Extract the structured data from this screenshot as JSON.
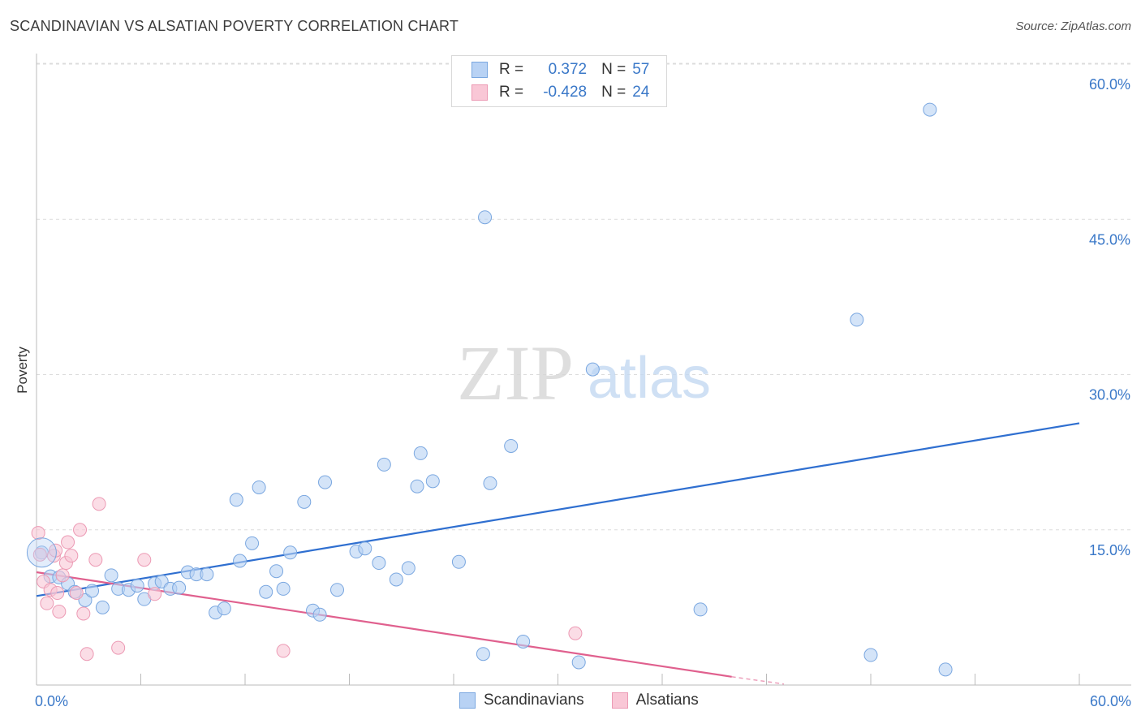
{
  "title": "SCANDINAVIAN VS ALSATIAN POVERTY CORRELATION CHART",
  "source": "Source: ZipAtlas.com",
  "watermark": {
    "zip": "ZIP",
    "atlas": "atlas"
  },
  "legend_top": [
    {
      "r_label": "R =",
      "r_value": "0.372",
      "n_label": "N =",
      "n_value": "57",
      "fill": "#b8d2f4",
      "stroke": "#7aa7e0"
    },
    {
      "r_label": "R =",
      "r_value": "-0.428",
      "n_label": "N =",
      "n_value": "24",
      "fill": "#f9c7d6",
      "stroke": "#ec9ab4"
    }
  ],
  "chart_data": {
    "type": "scatter",
    "title": "SCANDINAVIAN VS ALSATIAN POVERTY CORRELATION CHART",
    "xlabel": "",
    "ylabel": "Poverty",
    "xlim": [
      0,
      60
    ],
    "ylim": [
      0,
      60
    ],
    "x_tick_labels": [
      "0.0%",
      "60.0%"
    ],
    "y_ticks": [
      15,
      30,
      45,
      60
    ],
    "y_tick_labels": [
      "15.0%",
      "30.0%",
      "45.0%",
      "60.0%"
    ],
    "grid": true,
    "legend_position": "bottom-center",
    "series": [
      {
        "name": "Scandinavians",
        "color": "#7aa7e0",
        "fill": "#b8d2f4",
        "line_color": "#2f6fd0",
        "trend": {
          "x": [
            0,
            60
          ],
          "y": [
            8.6,
            25.3
          ]
        },
        "points": [
          [
            0.3,
            12.8
          ],
          [
            0.8,
            10.5
          ],
          [
            1.3,
            10.4
          ],
          [
            1.8,
            9.8
          ],
          [
            2.2,
            9.0
          ],
          [
            2.8,
            8.2
          ],
          [
            3.2,
            9.1
          ],
          [
            3.8,
            7.5
          ],
          [
            4.3,
            10.6
          ],
          [
            4.7,
            9.3
          ],
          [
            5.3,
            9.2
          ],
          [
            5.8,
            9.6
          ],
          [
            6.2,
            8.3
          ],
          [
            6.8,
            9.8
          ],
          [
            7.2,
            10.0
          ],
          [
            7.7,
            9.3
          ],
          [
            8.2,
            9.4
          ],
          [
            8.7,
            10.9
          ],
          [
            9.2,
            10.7
          ],
          [
            9.8,
            10.7
          ],
          [
            10.3,
            7.0
          ],
          [
            10.8,
            7.4
          ],
          [
            11.5,
            17.9
          ],
          [
            11.7,
            12.0
          ],
          [
            12.4,
            13.7
          ],
          [
            12.8,
            19.1
          ],
          [
            13.2,
            9.0
          ],
          [
            13.8,
            11.0
          ],
          [
            14.2,
            9.3
          ],
          [
            14.6,
            12.8
          ],
          [
            15.4,
            17.7
          ],
          [
            15.9,
            7.2
          ],
          [
            16.3,
            6.8
          ],
          [
            16.6,
            19.6
          ],
          [
            17.3,
            9.2
          ],
          [
            18.4,
            12.9
          ],
          [
            18.9,
            13.2
          ],
          [
            19.7,
            11.8
          ],
          [
            20.0,
            21.3
          ],
          [
            20.7,
            10.2
          ],
          [
            21.4,
            11.3
          ],
          [
            21.9,
            19.2
          ],
          [
            22.1,
            22.4
          ],
          [
            22.8,
            19.7
          ],
          [
            24.3,
            11.9
          ],
          [
            25.8,
            45.2
          ],
          [
            25.7,
            3.0
          ],
          [
            26.1,
            19.5
          ],
          [
            27.3,
            23.1
          ],
          [
            28.0,
            4.2
          ],
          [
            31.2,
            2.2
          ],
          [
            32.0,
            30.5
          ],
          [
            38.2,
            7.3
          ],
          [
            47.2,
            35.3
          ],
          [
            48.0,
            2.9
          ],
          [
            51.4,
            55.6
          ],
          [
            52.3,
            1.5
          ]
        ]
      },
      {
        "name": "Alsatians",
        "color": "#ec9ab4",
        "fill": "#f9c7d6",
        "line_color": "#e0608e",
        "trend": {
          "x": [
            0,
            40
          ],
          "y": [
            10.9,
            0.8
          ]
        },
        "trend_dashed": {
          "x": [
            40,
            43
          ],
          "y": [
            0.8,
            0.1
          ]
        },
        "points": [
          [
            0.1,
            14.7
          ],
          [
            0.2,
            12.6
          ],
          [
            0.4,
            10.0
          ],
          [
            0.6,
            7.9
          ],
          [
            0.8,
            9.2
          ],
          [
            1.0,
            12.5
          ],
          [
            1.1,
            13.0
          ],
          [
            1.2,
            8.9
          ],
          [
            1.3,
            7.1
          ],
          [
            1.5,
            10.6
          ],
          [
            1.7,
            11.8
          ],
          [
            1.8,
            13.8
          ],
          [
            2.0,
            12.5
          ],
          [
            2.3,
            8.9
          ],
          [
            2.5,
            15.0
          ],
          [
            2.7,
            6.9
          ],
          [
            2.9,
            3.0
          ],
          [
            3.4,
            12.1
          ],
          [
            3.6,
            17.5
          ],
          [
            4.7,
            3.6
          ],
          [
            6.2,
            12.1
          ],
          [
            6.8,
            8.8
          ],
          [
            14.2,
            3.3
          ],
          [
            31.0,
            5.0
          ]
        ]
      }
    ]
  },
  "legend_bottom": [
    {
      "label": "Scandinavians",
      "fill": "#b8d2f4",
      "stroke": "#7aa7e0"
    },
    {
      "label": "Alsatians",
      "fill": "#f9c7d6",
      "stroke": "#ec9ab4"
    }
  ]
}
